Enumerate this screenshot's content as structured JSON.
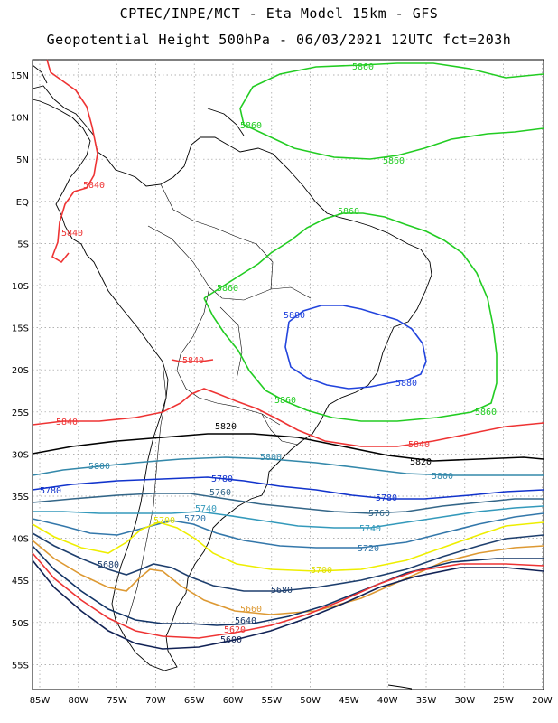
{
  "title": {
    "line1": "CPTEC/INPE/MCT -  Eta Model 15km - GFS",
    "line2": "Geopotential Height 500hPa - 06/03/2021 12UTC fct=203h"
  },
  "axes": {
    "lat_labels": [
      "15N",
      "10N",
      "5N",
      "EQ",
      "5S",
      "10S",
      "15S",
      "20S",
      "25S",
      "30S",
      "35S",
      "40S",
      "45S",
      "50S",
      "55S"
    ],
    "lon_labels": [
      "85W",
      "80W",
      "75W",
      "70W",
      "65W",
      "60W",
      "55W",
      "50W",
      "45W",
      "40W",
      "35W",
      "30W",
      "25W",
      "20W"
    ]
  },
  "contours": [
    {
      "value": "5860",
      "color": "#22cc22"
    },
    {
      "value": "5880",
      "color": "#2244dd"
    },
    {
      "value": "5840",
      "color": "#ee3333"
    },
    {
      "value": "5820",
      "color": "#000000"
    },
    {
      "value": "5800",
      "color": "#3388aa"
    },
    {
      "value": "5780",
      "color": "#1133cc"
    },
    {
      "value": "5760",
      "color": "#336688"
    },
    {
      "value": "5740",
      "color": "#3399bb"
    },
    {
      "value": "5720",
      "color": "#3377aa"
    },
    {
      "value": "5700",
      "color": "#eeee00"
    },
    {
      "value": "5660",
      "color": "#dd9933"
    },
    {
      "value": "5680",
      "color": "#1e3f6e"
    },
    {
      "value": "5640",
      "color": "#113366"
    },
    {
      "value": "5620",
      "color": "#ee3333"
    },
    {
      "value": "5600",
      "color": "#112255"
    }
  ],
  "labels": [
    {
      "text": "5860",
      "color": "#22cc22"
    },
    {
      "text": "5860",
      "color": "#22cc22"
    },
    {
      "text": "5860",
      "color": "#22cc22"
    },
    {
      "text": "5860",
      "color": "#22cc22"
    },
    {
      "text": "5860",
      "color": "#22cc22"
    },
    {
      "text": "5860",
      "color": "#22cc22"
    },
    {
      "text": "5860",
      "color": "#22cc22"
    },
    {
      "text": "5880",
      "color": "#2244dd"
    },
    {
      "text": "5880",
      "color": "#2244dd"
    },
    {
      "text": "5840",
      "color": "#ee3333"
    },
    {
      "text": "5840",
      "color": "#ee3333"
    },
    {
      "text": "5840",
      "color": "#ee3333"
    },
    {
      "text": "5840",
      "color": "#ee3333"
    },
    {
      "text": "5840",
      "color": "#ee3333"
    },
    {
      "text": "5820",
      "color": "#000000"
    },
    {
      "text": "5820",
      "color": "#000000"
    },
    {
      "text": "5800",
      "color": "#3388aa"
    },
    {
      "text": "5800",
      "color": "#3388aa"
    },
    {
      "text": "5800",
      "color": "#3388aa"
    },
    {
      "text": "5780",
      "color": "#1133cc"
    },
    {
      "text": "5780",
      "color": "#1133cc"
    },
    {
      "text": "5780",
      "color": "#1133cc"
    },
    {
      "text": "5760",
      "color": "#336688"
    },
    {
      "text": "5760",
      "color": "#336688"
    },
    {
      "text": "5740",
      "color": "#3399bb"
    },
    {
      "text": "5740",
      "color": "#3399bb"
    },
    {
      "text": "5720",
      "color": "#3377aa"
    },
    {
      "text": "5720",
      "color": "#3377aa"
    },
    {
      "text": "5700",
      "color": "#dddd00"
    },
    {
      "text": "5700",
      "color": "#dddd00"
    },
    {
      "text": "5680",
      "color": "#1e3f6e"
    },
    {
      "text": "5680",
      "color": "#1e3f6e"
    },
    {
      "text": "5660",
      "color": "#dd9933"
    },
    {
      "text": "5640",
      "color": "#113366"
    },
    {
      "text": "5620",
      "color": "#ee3333"
    },
    {
      "text": "5600",
      "color": "#112255"
    }
  ]
}
